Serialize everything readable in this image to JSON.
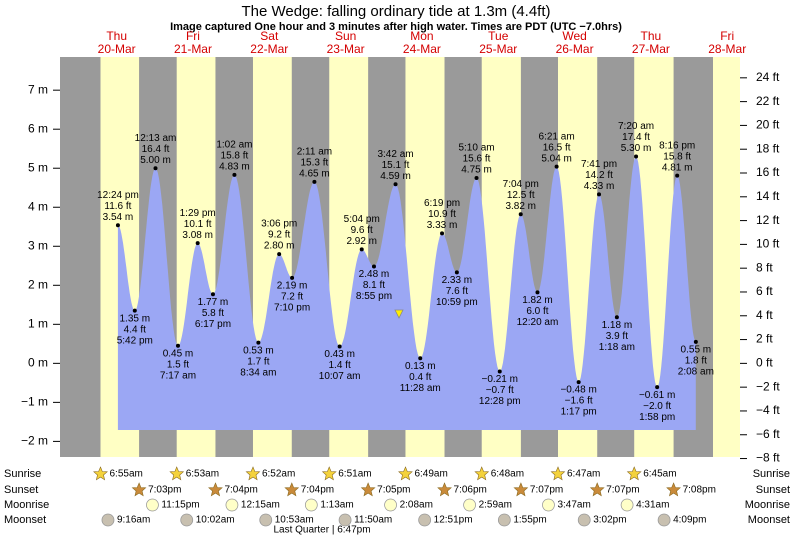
{
  "chart_data": {
    "type": "area",
    "title": "The Wedge: falling  ordinary tide at 1.3m (4.4ft)",
    "subtitle": "Image captured One hour and 3 minutes after high water. Times are PDT (UTC −7.0hrs)",
    "area_color": "#9ba7f4",
    "day_color": "#ffffc4",
    "night_color": "#9a9a9a",
    "date_color": "#d40000",
    "ylim": [
      -2.4,
      7.85
    ],
    "y2lim": [
      -7.87,
      25.75
    ],
    "yticks": [
      {
        "value": 7,
        "label": "7 m"
      },
      {
        "value": 6,
        "label": "6 m"
      },
      {
        "value": 5,
        "label": "5 m"
      },
      {
        "value": 4,
        "label": "4 m"
      },
      {
        "value": 3,
        "label": "3 m"
      },
      {
        "value": 2,
        "label": "2 m"
      },
      {
        "value": 1,
        "label": "1 m"
      },
      {
        "value": 0,
        "label": "0 m"
      },
      {
        "value": -1,
        "label": "−1 m"
      },
      {
        "value": -2,
        "label": "−2 m"
      }
    ],
    "y2ticks": [
      {
        "value": 24,
        "label": "24 ft"
      },
      {
        "value": 22,
        "label": "22 ft"
      },
      {
        "value": 20,
        "label": "20 ft"
      },
      {
        "value": 18,
        "label": "18 ft"
      },
      {
        "value": 16,
        "label": "16 ft"
      },
      {
        "value": 14,
        "label": "14 ft"
      },
      {
        "value": 12,
        "label": "12 ft"
      },
      {
        "value": 10,
        "label": "10 ft"
      },
      {
        "value": 8,
        "label": "8 ft"
      },
      {
        "value": 6,
        "label": "6 ft"
      },
      {
        "value": 4,
        "label": "4 ft"
      },
      {
        "value": 2,
        "label": "2 ft"
      },
      {
        "value": 0,
        "label": "0 ft"
      },
      {
        "value": -2,
        "label": "−2 ft"
      },
      {
        "value": -4,
        "label": "−4 ft"
      },
      {
        "value": -6,
        "label": "−6 ft"
      },
      {
        "value": -8,
        "label": "−8 ft"
      }
    ],
    "row_labels": [
      "Sunrise",
      "Sunset",
      "Moonrise",
      "Moonset"
    ],
    "moon_phase": "Last Quarter | 6:47pm",
    "days": [
      {
        "weekday": "Thu",
        "date": "20-Mar",
        "sunrise": "6:55am",
        "sunset": "7:03pm",
        "moonrise": "11:15pm",
        "moonset": "9:16am",
        "tides": [
          {
            "time": "12:24 pm",
            "value": 3.54,
            "value_label": "3.54 m",
            "ft_label": "11.6 ft"
          },
          {
            "time": "5:42 pm",
            "value": 1.35,
            "value_label": "1.35 m",
            "ft_label": "4.4 ft"
          }
        ]
      },
      {
        "weekday": "Fri",
        "date": "21-Mar",
        "sunrise": "6:53am",
        "sunset": "7:04pm",
        "moonset": "10:02am",
        "tides": [
          {
            "time": "12:13 am",
            "value": 5.0,
            "value_label": "5.00 m",
            "ft_label": "16.4 ft"
          },
          {
            "time": "7:17 am",
            "value": 0.45,
            "value_label": "0.45 m",
            "ft_label": "1.5 ft"
          },
          {
            "time": "1:29 pm",
            "value": 3.08,
            "value_label": "3.08 m",
            "ft_label": "10.1 ft"
          },
          {
            "time": "6:17 pm",
            "value": 1.77,
            "value_label": "1.77 m",
            "ft_label": "5.8 ft"
          }
        ]
      },
      {
        "weekday": "Sat",
        "date": "22-Mar",
        "sunrise": "6:52am",
        "sunset": "7:04pm",
        "moonrise": "12:15am",
        "moonset": "10:53am",
        "tides": [
          {
            "time": "1:02 am",
            "value": 4.83,
            "value_label": "4.83 m",
            "ft_label": "15.8 ft"
          },
          {
            "time": "8:34 am",
            "value": 0.53,
            "value_label": "0.53 m",
            "ft_label": "1.7 ft"
          },
          {
            "time": "3:06 pm",
            "value": 2.8,
            "value_label": "2.80 m",
            "ft_label": "9.2 ft"
          },
          {
            "time": "7:10 pm",
            "value": 2.19,
            "value_label": "2.19 m",
            "ft_label": "7.2 ft"
          }
        ]
      },
      {
        "weekday": "Sun",
        "date": "23-Mar",
        "sunrise": "6:51am",
        "sunset": "7:05pm",
        "moonrise": "1:13am",
        "moonset": "11:50am",
        "tides": [
          {
            "time": "2:11 am",
            "value": 4.65,
            "value_label": "4.65 m",
            "ft_label": "15.3 ft"
          },
          {
            "time": "10:07 am",
            "value": 0.43,
            "value_label": "0.43 m",
            "ft_label": "1.4 ft"
          },
          {
            "time": "5:04 pm",
            "value": 2.92,
            "value_label": "2.92 m",
            "ft_label": "9.6 ft"
          },
          {
            "time": "8:55 pm",
            "value": 2.48,
            "value_label": "2.48 m",
            "ft_label": "8.1 ft"
          }
        ]
      },
      {
        "weekday": "Mon",
        "date": "24-Mar",
        "sunrise": "6:49am",
        "sunset": "7:06pm",
        "moonrise": "2:08am",
        "moonset": "12:51pm",
        "tides": [
          {
            "time": "3:42 am",
            "value": 4.59,
            "value_label": "4.59 m",
            "ft_label": "15.1 ft"
          },
          {
            "time": "11:28 am",
            "value": 0.13,
            "value_label": "0.13 m",
            "ft_label": "0.4 ft"
          },
          {
            "time": "6:19 pm",
            "value": 3.33,
            "value_label": "3.33 m",
            "ft_label": "10.9 ft"
          },
          {
            "time": "10:59 pm",
            "value": 2.33,
            "value_label": "2.33 m",
            "ft_label": "7.6 ft"
          }
        ]
      },
      {
        "weekday": "Tue",
        "date": "25-Mar",
        "sunrise": "6:48am",
        "sunset": "7:07pm",
        "moonrise": "2:59am",
        "moonset": "1:55pm",
        "tides": [
          {
            "time": "5:10 am",
            "value": 4.75,
            "value_label": "4.75 m",
            "ft_label": "15.6 ft"
          },
          {
            "time": "12:28 pm",
            "value": -0.21,
            "value_label": "−0.21 m",
            "ft_label": "−0.7 ft"
          },
          {
            "time": "7:04 pm",
            "value": 3.82,
            "value_label": "3.82 m",
            "ft_label": "12.5 ft"
          }
        ]
      },
      {
        "weekday": "Wed",
        "date": "26-Mar",
        "sunrise": "6:47am",
        "sunset": "7:07pm",
        "moonrise": "3:47am",
        "moonset": "3:02pm",
        "tides": [
          {
            "time": "12:20 am",
            "value": 1.82,
            "value_label": "1.82 m",
            "ft_label": "6.0 ft"
          },
          {
            "time": "6:21 am",
            "value": 5.04,
            "value_label": "5.04 m",
            "ft_label": "16.5 ft"
          },
          {
            "time": "1:17 pm",
            "value": -0.48,
            "value_label": "−0.48 m",
            "ft_label": "−1.6 ft"
          },
          {
            "time": "7:41 pm",
            "value": 4.33,
            "value_label": "4.33 m",
            "ft_label": "14.2 ft"
          }
        ]
      },
      {
        "weekday": "Thu",
        "date": "27-Mar",
        "sunrise": "6:45am",
        "sunset": "7:08pm",
        "moonrise": "4:31am",
        "moonset": "4:09pm",
        "tides": [
          {
            "time": "1:18 am",
            "value": 1.18,
            "value_label": "1.18 m",
            "ft_label": "3.9 ft"
          },
          {
            "time": "7:20 am",
            "value": 5.3,
            "value_label": "5.30 m",
            "ft_label": "17.4 ft"
          },
          {
            "time": "1:58 pm",
            "value": -0.61,
            "value_label": "−0.61 m",
            "ft_label": "−2.0 ft"
          },
          {
            "time": "8:16 pm",
            "value": 4.81,
            "value_label": "4.81 m",
            "ft_label": "15.8 ft"
          }
        ]
      },
      {
        "weekday": "Fri",
        "date": "28-Mar",
        "tides": [
          {
            "time": "2:08 am",
            "value": 0.55,
            "value_label": "0.55 m",
            "ft_label": "1.8 ft"
          }
        ]
      }
    ]
  }
}
